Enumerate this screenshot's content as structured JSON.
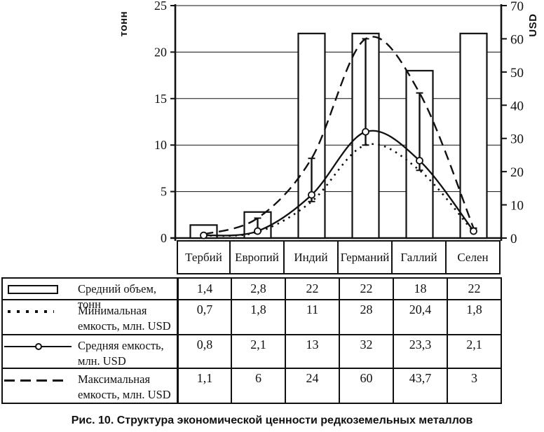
{
  "figure_caption": "Рис. 10. Структура экономической ценности редкоземельных металлов",
  "chart_data": {
    "type": "combo",
    "title": "",
    "categories": [
      "Тербий",
      "Европий",
      "Индий",
      "Германий",
      "Галлий",
      "Селен"
    ],
    "left_axis": {
      "label": "тонн",
      "min": 0,
      "max": 25,
      "step": 5,
      "ticks": [
        0,
        5,
        10,
        15,
        20,
        25
      ]
    },
    "right_axis": {
      "label": "USD",
      "min": 0,
      "max": 70,
      "step": 10,
      "ticks": [
        0,
        10,
        20,
        30,
        40,
        50,
        60,
        70
      ]
    },
    "grid": true,
    "legend_position": "table-below",
    "colors": {
      "ink": "#111111",
      "background": "#ffffff"
    },
    "series": [
      {
        "name": "Средний объем, тонн",
        "type": "bar",
        "style": "outlined-bar",
        "axis": "left",
        "values": [
          1.4,
          2.8,
          22,
          22,
          18,
          22
        ]
      },
      {
        "name": "Минимальная емкость, млн. USD",
        "type": "line",
        "style": "dotted",
        "axis": "right",
        "values": [
          0.7,
          1.8,
          11,
          28,
          20.4,
          1.8
        ]
      },
      {
        "name": "Средняя емкость, млн. USD",
        "type": "line",
        "style": "solid-circle-marker",
        "axis": "right",
        "values": [
          0.8,
          2.1,
          13,
          32,
          23.3,
          2.1
        ]
      },
      {
        "name": "Максимальная емкость, млн. USD",
        "type": "line",
        "style": "dashed",
        "axis": "right",
        "values": [
          1.1,
          6,
          24,
          60,
          43.7,
          3
        ]
      }
    ],
    "range_lines": {
      "low_series": 1,
      "high_series": 3
    }
  },
  "table": {
    "rows": [
      {
        "symbol": "bar",
        "label": "Средний объем, тонн",
        "values": [
          "1,4",
          "2,8",
          "22",
          "22",
          "18",
          "22"
        ]
      },
      {
        "symbol": "dotted",
        "label": "Минимальная емкость, млн. USD",
        "values": [
          "0,7",
          "1,8",
          "11",
          "28",
          "20,4",
          "1,8"
        ]
      },
      {
        "symbol": "marker-line",
        "label": "Средняя емкость, млн. USD",
        "values": [
          "0,8",
          "2,1",
          "13",
          "32",
          "23,3",
          "2,1"
        ]
      },
      {
        "symbol": "dashed",
        "label": "Максимальная емкость, млн. USD",
        "values": [
          "1,1",
          "6",
          "24",
          "60",
          "43,7",
          "3"
        ]
      }
    ]
  }
}
